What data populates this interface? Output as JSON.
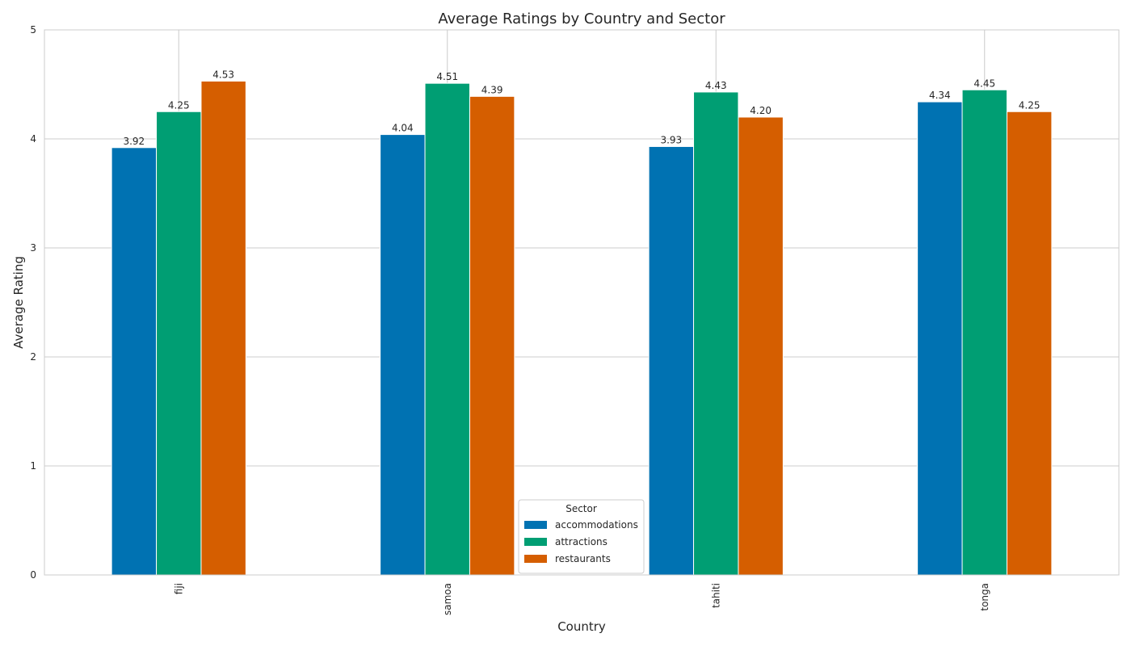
{
  "chart_data": {
    "type": "bar",
    "title": "Average Ratings by Country and Sector",
    "xlabel": "Country",
    "ylabel": "Average Rating",
    "categories": [
      "fiji",
      "samoa",
      "tahiti",
      "tonga"
    ],
    "series": [
      {
        "name": "accommodations",
        "color": "#0072b2",
        "values": [
          3.92,
          4.04,
          3.93,
          4.34
        ],
        "labels": [
          "3.92",
          "4.04",
          "3.93",
          "4.34"
        ]
      },
      {
        "name": "attractions",
        "color": "#009e73",
        "values": [
          4.25,
          4.51,
          4.43,
          4.45
        ],
        "labels": [
          "4.25",
          "4.51",
          "4.43",
          "4.45"
        ]
      },
      {
        "name": "restaurants",
        "color": "#d55e00",
        "values": [
          4.53,
          4.39,
          4.2,
          4.25
        ],
        "labels": [
          "4.53",
          "4.39",
          "4.20",
          "4.25"
        ]
      }
    ],
    "ylim": [
      0,
      5
    ],
    "yticks": [
      "0",
      "1",
      "2",
      "3",
      "4",
      "5"
    ],
    "grid": true,
    "legend": {
      "title": "Sector",
      "placement": "lower-center"
    }
  }
}
